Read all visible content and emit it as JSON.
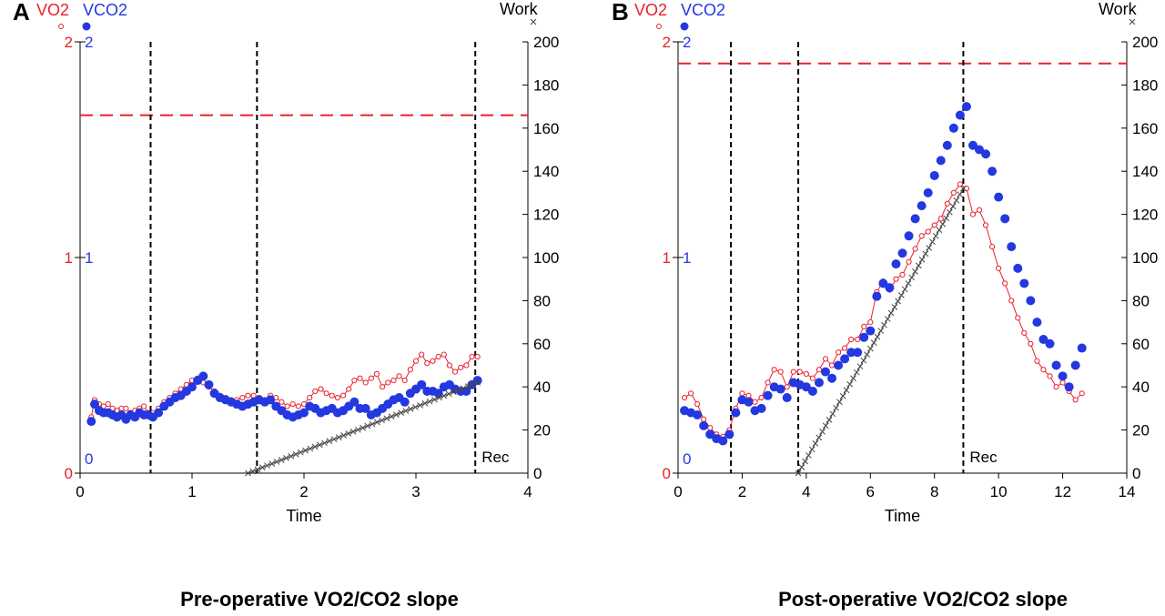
{
  "chart_data": [
    {
      "panel_letter": "A",
      "type": "scatter",
      "caption": "Pre-operative VO2/CO2 slope",
      "xlabel": "Time",
      "xlim": [
        0,
        4
      ],
      "x_ticks": [
        0,
        1,
        2,
        3,
        4
      ],
      "left_axis": {
        "vo2_label": "VO2",
        "vco2_label": "VCO2",
        "vo2_ticks": [
          0,
          1,
          2
        ],
        "vco2_ticks": [
          0,
          1,
          2
        ],
        "ylim": [
          0,
          2
        ],
        "vo2_color": "#e8202a",
        "vco2_color": "#2438e0"
      },
      "right_axis": {
        "label": "Work",
        "ylim": [
          0,
          200
        ],
        "ticks": [
          0,
          20,
          40,
          60,
          80,
          100,
          120,
          140,
          160,
          180,
          200
        ]
      },
      "threshold_line": {
        "y": 1.66,
        "color": "#e8202a",
        "style": "dashed"
      },
      "vertical_lines": [
        0.63,
        1.58,
        3.53
      ],
      "annotations": [
        {
          "text": "Rec",
          "x": 3.53
        }
      ],
      "series": [
        {
          "name": "VO2",
          "marker": "open-circle",
          "color": "#e8202a",
          "x": [
            0.1,
            0.13,
            0.17,
            0.21,
            0.25,
            0.29,
            0.33,
            0.37,
            0.41,
            0.45,
            0.49,
            0.53,
            0.57,
            0.61,
            0.65,
            0.7,
            0.75,
            0.8,
            0.85,
            0.9,
            0.95,
            1.0,
            1.05,
            1.1,
            1.15,
            1.2,
            1.25,
            1.3,
            1.35,
            1.4,
            1.45,
            1.5,
            1.55,
            1.6,
            1.65,
            1.7,
            1.75,
            1.8,
            1.85,
            1.9,
            1.95,
            2.0,
            2.05,
            2.1,
            2.15,
            2.2,
            2.25,
            2.3,
            2.35,
            2.4,
            2.45,
            2.5,
            2.55,
            2.6,
            2.65,
            2.7,
            2.75,
            2.8,
            2.85,
            2.9,
            2.95,
            3.0,
            3.05,
            3.1,
            3.15,
            3.2,
            3.25,
            3.3,
            3.35,
            3.4,
            3.45,
            3.5,
            3.55
          ],
          "values": [
            0.26,
            0.34,
            0.32,
            0.31,
            0.32,
            0.3,
            0.29,
            0.3,
            0.3,
            0.28,
            0.29,
            0.3,
            0.31,
            0.28,
            0.28,
            0.3,
            0.33,
            0.35,
            0.37,
            0.39,
            0.41,
            0.43,
            0.44,
            0.42,
            0.4,
            0.38,
            0.36,
            0.35,
            0.34,
            0.34,
            0.35,
            0.36,
            0.36,
            0.35,
            0.34,
            0.36,
            0.35,
            0.33,
            0.31,
            0.32,
            0.31,
            0.32,
            0.35,
            0.38,
            0.39,
            0.37,
            0.36,
            0.35,
            0.36,
            0.39,
            0.43,
            0.44,
            0.42,
            0.44,
            0.46,
            0.4,
            0.42,
            0.43,
            0.45,
            0.43,
            0.48,
            0.52,
            0.55,
            0.51,
            0.52,
            0.54,
            0.55,
            0.5,
            0.47,
            0.49,
            0.5,
            0.54,
            0.54
          ]
        },
        {
          "name": "VCO2",
          "marker": "filled-circle",
          "color": "#2438e0",
          "x": [
            0.1,
            0.13,
            0.17,
            0.21,
            0.25,
            0.29,
            0.33,
            0.37,
            0.41,
            0.45,
            0.49,
            0.53,
            0.57,
            0.61,
            0.65,
            0.7,
            0.75,
            0.8,
            0.85,
            0.9,
            0.95,
            1.0,
            1.05,
            1.1,
            1.15,
            1.2,
            1.25,
            1.3,
            1.35,
            1.4,
            1.45,
            1.5,
            1.55,
            1.6,
            1.65,
            1.7,
            1.75,
            1.8,
            1.85,
            1.9,
            1.95,
            2.0,
            2.05,
            2.1,
            2.15,
            2.2,
            2.25,
            2.3,
            2.35,
            2.4,
            2.45,
            2.5,
            2.55,
            2.6,
            2.65,
            2.7,
            2.75,
            2.8,
            2.85,
            2.9,
            2.95,
            3.0,
            3.05,
            3.1,
            3.15,
            3.2,
            3.25,
            3.3,
            3.35,
            3.4,
            3.45,
            3.5,
            3.55
          ],
          "values": [
            0.24,
            0.32,
            0.29,
            0.28,
            0.28,
            0.27,
            0.26,
            0.27,
            0.25,
            0.27,
            0.26,
            0.28,
            0.27,
            0.27,
            0.26,
            0.28,
            0.31,
            0.33,
            0.35,
            0.36,
            0.38,
            0.4,
            0.43,
            0.45,
            0.41,
            0.37,
            0.35,
            0.34,
            0.33,
            0.32,
            0.31,
            0.32,
            0.33,
            0.34,
            0.33,
            0.34,
            0.31,
            0.29,
            0.27,
            0.26,
            0.27,
            0.28,
            0.31,
            0.3,
            0.28,
            0.29,
            0.3,
            0.28,
            0.29,
            0.31,
            0.33,
            0.3,
            0.3,
            0.27,
            0.28,
            0.3,
            0.32,
            0.34,
            0.35,
            0.33,
            0.37,
            0.39,
            0.41,
            0.38,
            0.38,
            0.37,
            0.4,
            0.41,
            0.39,
            0.38,
            0.38,
            0.41,
            0.43
          ]
        },
        {
          "name": "Work",
          "marker": "x",
          "color": "#444444",
          "axis": "right",
          "x": [
            1.5,
            3.55
          ],
          "values": [
            0,
            42
          ]
        }
      ]
    },
    {
      "panel_letter": "B",
      "type": "scatter",
      "caption": "Post-operative VO2/CO2 slope",
      "xlabel": "Time",
      "xlim": [
        0,
        14
      ],
      "x_ticks": [
        0,
        2,
        4,
        6,
        8,
        10,
        12,
        14
      ],
      "left_axis": {
        "vo2_label": "VO2",
        "vco2_label": "VCO2",
        "vo2_ticks": [
          0,
          1,
          2
        ],
        "vco2_ticks": [
          0,
          1,
          2
        ],
        "ylim": [
          0,
          2
        ],
        "vo2_color": "#e8202a",
        "vco2_color": "#2438e0"
      },
      "right_axis": {
        "label": "Work",
        "ylim": [
          0,
          200
        ],
        "ticks": [
          0,
          20,
          40,
          60,
          80,
          100,
          120,
          140,
          160,
          180,
          200
        ]
      },
      "threshold_line": {
        "y": 1.9,
        "color": "#e8202a",
        "style": "dashed"
      },
      "vertical_lines": [
        1.65,
        3.75,
        8.9
      ],
      "annotations": [
        {
          "text": "Rec",
          "x": 8.9
        }
      ],
      "series": [
        {
          "name": "VO2",
          "marker": "open-circle",
          "color": "#e8202a",
          "x": [
            0.2,
            0.4,
            0.6,
            0.8,
            1.0,
            1.2,
            1.4,
            1.6,
            1.8,
            2.0,
            2.2,
            2.4,
            2.6,
            2.8,
            3.0,
            3.2,
            3.4,
            3.6,
            3.8,
            4.0,
            4.2,
            4.4,
            4.6,
            4.8,
            5.0,
            5.2,
            5.4,
            5.6,
            5.8,
            6.0,
            6.2,
            6.4,
            6.6,
            6.8,
            7.0,
            7.2,
            7.4,
            7.6,
            7.8,
            8.0,
            8.2,
            8.4,
            8.6,
            8.8,
            9.0,
            9.2,
            9.4,
            9.6,
            9.8,
            10.0,
            10.2,
            10.4,
            10.6,
            10.8,
            11.0,
            11.2,
            11.4,
            11.6,
            11.8,
            12.0,
            12.2,
            12.4,
            12.6
          ],
          "values": [
            0.35,
            0.37,
            0.32,
            0.25,
            0.21,
            0.18,
            0.17,
            0.2,
            0.3,
            0.37,
            0.36,
            0.33,
            0.35,
            0.42,
            0.48,
            0.47,
            0.4,
            0.47,
            0.47,
            0.46,
            0.44,
            0.48,
            0.53,
            0.5,
            0.56,
            0.58,
            0.62,
            0.62,
            0.68,
            0.7,
            0.84,
            0.89,
            0.85,
            0.9,
            0.92,
            0.98,
            1.04,
            1.1,
            1.12,
            1.15,
            1.18,
            1.25,
            1.3,
            1.34,
            1.32,
            1.2,
            1.22,
            1.15,
            1.05,
            0.95,
            0.88,
            0.8,
            0.72,
            0.65,
            0.6,
            0.52,
            0.48,
            0.45,
            0.4,
            0.42,
            0.38,
            0.34,
            0.37
          ]
        },
        {
          "name": "VCO2",
          "marker": "filled-circle",
          "color": "#2438e0",
          "x": [
            0.2,
            0.4,
            0.6,
            0.8,
            1.0,
            1.2,
            1.4,
            1.6,
            1.8,
            2.0,
            2.2,
            2.4,
            2.6,
            2.8,
            3.0,
            3.2,
            3.4,
            3.6,
            3.8,
            4.0,
            4.2,
            4.4,
            4.6,
            4.8,
            5.0,
            5.2,
            5.4,
            5.6,
            5.8,
            6.0,
            6.2,
            6.4,
            6.6,
            6.8,
            7.0,
            7.2,
            7.4,
            7.6,
            7.8,
            8.0,
            8.2,
            8.4,
            8.6,
            8.8,
            9.0,
            9.2,
            9.4,
            9.6,
            9.8,
            10.0,
            10.2,
            10.4,
            10.6,
            10.8,
            11.0,
            11.2,
            11.4,
            11.6,
            11.8,
            12.0,
            12.2,
            12.4,
            12.6
          ],
          "values": [
            0.29,
            0.28,
            0.27,
            0.22,
            0.18,
            0.16,
            0.15,
            0.18,
            0.28,
            0.34,
            0.33,
            0.29,
            0.3,
            0.36,
            0.4,
            0.39,
            0.35,
            0.42,
            0.41,
            0.4,
            0.38,
            0.42,
            0.47,
            0.44,
            0.5,
            0.53,
            0.56,
            0.56,
            0.63,
            0.66,
            0.82,
            0.88,
            0.86,
            0.97,
            1.02,
            1.1,
            1.18,
            1.24,
            1.3,
            1.38,
            1.45,
            1.52,
            1.6,
            1.66,
            1.7,
            1.52,
            1.5,
            1.48,
            1.4,
            1.28,
            1.18,
            1.05,
            0.95,
            0.88,
            0.8,
            0.7,
            0.62,
            0.6,
            0.5,
            0.45,
            0.4,
            0.5,
            0.58
          ]
        },
        {
          "name": "Work",
          "marker": "x",
          "color": "#444444",
          "axis": "right",
          "x": [
            3.75,
            8.9
          ],
          "values": [
            0,
            132
          ]
        }
      ]
    }
  ]
}
